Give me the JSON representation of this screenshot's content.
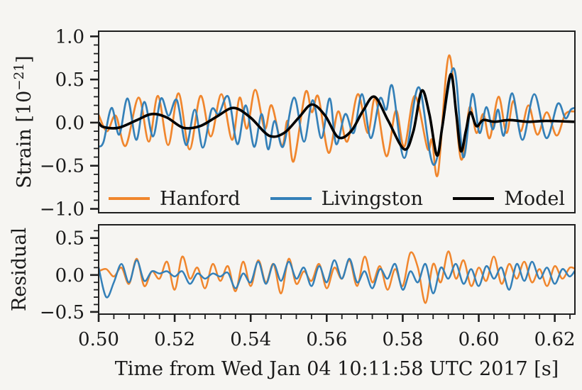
{
  "figure": {
    "background": "#f6f5f2",
    "axis_color": "#1f1f1f",
    "text_color": "#1a1a1a"
  },
  "labels": {
    "xlabel": "Time from Wed Jan 04 10:11:58 UTC 2017 [s]",
    "strain_prefix": "Strain [10",
    "strain_exp": "−21",
    "strain_suffix": "]",
    "residual": "Residual"
  },
  "legend": {
    "items": [
      {
        "label": "Hanford",
        "color": "#f0862d"
      },
      {
        "label": "Livingston",
        "color": "#3480b8"
      },
      {
        "label": "Model",
        "color": "#000000"
      }
    ]
  },
  "xaxis": {
    "range": [
      0.5,
      0.6253
    ],
    "major_ticks": [
      0.5,
      0.52,
      0.54,
      0.56,
      0.58,
      0.6,
      0.62
    ],
    "major_tick_labels": [
      "0.50",
      "0.52",
      "0.54",
      "0.56",
      "0.58",
      "0.60",
      "0.62"
    ],
    "minor_step": 0.004,
    "label": "Time from Wed Jan 04 10:11:58 UTC 2017 [s]"
  },
  "chart_data": [
    {
      "type": "line",
      "name": "strain",
      "ylabel": "Strain [10^-21]",
      "ylim": [
        -1.045,
        1.06
      ],
      "yticks": [
        1.0,
        0.5,
        0.0,
        -0.5,
        -1.0
      ],
      "ytick_labels": [
        "1.0",
        "0.5",
        "0.0",
        "−0.5",
        "−1.0"
      ],
      "y_minor_step": 0.1,
      "show_x_ticks": false,
      "show_x_labels": false,
      "legend_entries": [
        "Hanford",
        "Livingston",
        "Model"
      ],
      "series": [
        {
          "name": "Hanford",
          "color": "#f0862d",
          "width": 2.7,
          "points": [
            [
              0.5,
              0.09
            ],
            [
              0.5022,
              -0.1
            ],
            [
              0.5045,
              0.08
            ],
            [
              0.5071,
              -0.27
            ],
            [
              0.5105,
              0.29
            ],
            [
              0.5132,
              -0.22
            ],
            [
              0.5156,
              0.31
            ],
            [
              0.5183,
              -0.26
            ],
            [
              0.521,
              0.34
            ],
            [
              0.5239,
              -0.31
            ],
            [
              0.5268,
              0.31
            ],
            [
              0.5295,
              -0.16
            ],
            [
              0.5323,
              0.33
            ],
            [
              0.5351,
              -0.2
            ],
            [
              0.5371,
              0.29
            ],
            [
              0.539,
              -0.07
            ],
            [
              0.5412,
              0.38
            ],
            [
              0.5437,
              -0.07
            ],
            [
              0.5455,
              0.2
            ],
            [
              0.5482,
              -0.27
            ],
            [
              0.5497,
              0.02
            ],
            [
              0.5513,
              -0.45
            ],
            [
              0.5544,
              0.35
            ],
            [
              0.5561,
              0.12
            ],
            [
              0.5578,
              0.3
            ],
            [
              0.5605,
              -0.35
            ],
            [
              0.563,
              0.13
            ],
            [
              0.5654,
              -0.22
            ],
            [
              0.5682,
              0.33
            ],
            [
              0.5708,
              -0.12
            ],
            [
              0.5728,
              0.28
            ],
            [
              0.5757,
              -0.39
            ],
            [
              0.5782,
              0.14
            ],
            [
              0.5804,
              -0.28
            ],
            [
              0.5832,
              0.31
            ],
            [
              0.5865,
              -0.3
            ],
            [
              0.5877,
              -0.2
            ],
            [
              0.5893,
              -0.59
            ],
            [
              0.5922,
              0.78
            ],
            [
              0.5953,
              -0.42
            ],
            [
              0.5976,
              0.18
            ],
            [
              0.5994,
              -0.12
            ],
            [
              0.6012,
              0.1
            ],
            [
              0.6029,
              -0.18
            ],
            [
              0.6052,
              0.3
            ],
            [
              0.6073,
              -0.12
            ],
            [
              0.6091,
              0.25
            ],
            [
              0.611,
              -0.1
            ],
            [
              0.6131,
              0.2
            ],
            [
              0.6154,
              -0.14
            ],
            [
              0.6179,
              0.12
            ],
            [
              0.6205,
              -0.15
            ],
            [
              0.6228,
              0.1
            ],
            [
              0.6252,
              0.13
            ]
          ]
        },
        {
          "name": "Livingston",
          "color": "#3480b8",
          "width": 2.7,
          "points": [
            [
              0.5,
              -0.28
            ],
            [
              0.5013,
              -0.22
            ],
            [
              0.5034,
              0.17
            ],
            [
              0.5054,
              -0.14
            ],
            [
              0.5076,
              0.28
            ],
            [
              0.5099,
              -0.2
            ],
            [
              0.512,
              0.24
            ],
            [
              0.5143,
              -0.16
            ],
            [
              0.5164,
              0.28
            ],
            [
              0.5184,
              0.08
            ],
            [
              0.5206,
              0.26
            ],
            [
              0.523,
              -0.26
            ],
            [
              0.5253,
              0.15
            ],
            [
              0.5274,
              -0.29
            ],
            [
              0.5297,
              0.15
            ],
            [
              0.5316,
              0.1
            ],
            [
              0.5341,
              0.3
            ],
            [
              0.5365,
              -0.25
            ],
            [
              0.5387,
              0.2
            ],
            [
              0.5409,
              -0.28
            ],
            [
              0.5429,
              0.1
            ],
            [
              0.5446,
              -0.31
            ],
            [
              0.5463,
              0.02
            ],
            [
              0.5485,
              -0.28
            ],
            [
              0.5514,
              0.29
            ],
            [
              0.554,
              -0.22
            ],
            [
              0.5563,
              0.26
            ],
            [
              0.5586,
              -0.18
            ],
            [
              0.5608,
              0.28
            ],
            [
              0.5625,
              -0.25
            ],
            [
              0.5649,
              0.1
            ],
            [
              0.5671,
              -0.12
            ],
            [
              0.5693,
              0.33
            ],
            [
              0.5716,
              -0.18
            ],
            [
              0.574,
              0.28
            ],
            [
              0.5757,
              0.15
            ],
            [
              0.5773,
              0.42
            ],
            [
              0.5804,
              -0.41
            ],
            [
              0.5842,
              0.41
            ],
            [
              0.5883,
              -0.49
            ],
            [
              0.5933,
              0.63
            ],
            [
              0.5959,
              -0.4
            ],
            [
              0.5983,
              0.33
            ],
            [
              0.6002,
              -0.12
            ],
            [
              0.602,
              0.18
            ],
            [
              0.6037,
              -0.08
            ],
            [
              0.6051,
              0.15
            ],
            [
              0.6066,
              -0.15
            ],
            [
              0.6088,
              0.34
            ],
            [
              0.6115,
              -0.2
            ],
            [
              0.6146,
              0.33
            ],
            [
              0.6178,
              -0.18
            ],
            [
              0.6208,
              0.22
            ],
            [
              0.6228,
              0.05
            ],
            [
              0.6242,
              0.15
            ],
            [
              0.6252,
              0.17
            ]
          ]
        },
        {
          "name": "Model",
          "color": "#000000",
          "width": 3.6,
          "points": [
            [
              0.5,
              0.0
            ],
            [
              0.5012,
              -0.05
            ],
            [
              0.5052,
              -0.06
            ],
            [
              0.5101,
              0.03
            ],
            [
              0.514,
              0.1
            ],
            [
              0.5179,
              0.06
            ],
            [
              0.5223,
              -0.06
            ],
            [
              0.5267,
              -0.04
            ],
            [
              0.5311,
              0.07
            ],
            [
              0.5355,
              0.17
            ],
            [
              0.5399,
              0.06
            ],
            [
              0.5448,
              -0.15
            ],
            [
              0.5488,
              -0.12
            ],
            [
              0.5527,
              0.06
            ],
            [
              0.5561,
              0.21
            ],
            [
              0.5596,
              0.08
            ],
            [
              0.563,
              -0.17
            ],
            [
              0.5664,
              -0.1
            ],
            [
              0.5696,
              0.14
            ],
            [
              0.5726,
              0.3
            ],
            [
              0.5762,
              0.02
            ],
            [
              0.5804,
              -0.31
            ],
            [
              0.5828,
              -0.1
            ],
            [
              0.585,
              0.37
            ],
            [
              0.587,
              0.1
            ],
            [
              0.589,
              -0.38
            ],
            [
              0.5904,
              -0.05
            ],
            [
              0.5926,
              0.56
            ],
            [
              0.5941,
              0.1
            ],
            [
              0.5953,
              -0.33
            ],
            [
              0.5966,
              -0.1
            ],
            [
              0.5978,
              0.12
            ],
            [
              0.5994,
              -0.04
            ],
            [
              0.6012,
              0.03
            ],
            [
              0.6041,
              0.01
            ],
            [
              0.608,
              0.03
            ],
            [
              0.6129,
              0.01
            ],
            [
              0.6178,
              0.02
            ],
            [
              0.6252,
              0.01
            ]
          ]
        }
      ]
    },
    {
      "type": "line",
      "name": "residual",
      "ylabel": "Residual",
      "ylim": [
        -0.53,
        0.68
      ],
      "yticks": [
        0.5,
        0.0,
        -0.5
      ],
      "ytick_labels": [
        "0.5",
        "0.0",
        "−0.5"
      ],
      "y_minor_step": 0.1,
      "show_x_ticks": true,
      "show_x_labels": true,
      "series": [
        {
          "name": "Hanford",
          "color": "#f0862d",
          "width": 2.5,
          "t0": 0.5,
          "dt": 0.002,
          "values": [
            0.05,
            0.08,
            -0.02,
            0.1,
            -0.12,
            0.22,
            -0.15,
            0.05,
            -0.05,
            0.18,
            -0.2,
            0.25,
            -0.05,
            0.1,
            -0.18,
            0.15,
            -0.08,
            0.12,
            -0.22,
            0.18,
            -0.15,
            0.2,
            -0.1,
            0.15,
            -0.25,
            0.22,
            -0.12,
            0.05,
            -0.08,
            0.15,
            -0.18,
            0.1,
            -0.05,
            0.2,
            -0.15,
            0.25,
            -0.1,
            0.12,
            -0.2,
            0.08,
            -0.15,
            0.3,
            0.1,
            -0.38,
            0.15,
            -0.1,
            0.32,
            -0.05,
            0.2,
            -0.15,
            0.1,
            -0.08,
            0.25,
            -0.12,
            0.15,
            -0.05,
            0.18,
            -0.1,
            0.08,
            -0.15,
            0.12,
            -0.05,
            0.1,
            0.06
          ]
        },
        {
          "name": "Livingston",
          "color": "#3480b8",
          "width": 2.5,
          "t0": 0.5,
          "dt": 0.002,
          "values": [
            0.1,
            -0.3,
            -0.1,
            0.15,
            -0.1,
            0.2,
            -0.08,
            0.05,
            0.02,
            0.05,
            -0.02,
            0.05,
            -0.12,
            0.02,
            -0.05,
            0.02,
            -0.02,
            0.03,
            -0.18,
            0.02,
            -0.1,
            0.18,
            -0.12,
            0.15,
            -0.08,
            0.18,
            -0.05,
            0.1,
            -0.15,
            0.12,
            -0.1,
            0.2,
            -0.05,
            0.22,
            -0.1,
            0.05,
            -0.18,
            0.08,
            -0.05,
            0.15,
            -0.2,
            0.05,
            -0.1,
            0.15,
            -0.25,
            0.1,
            -0.05,
            0.15,
            -0.12,
            0.08,
            -0.15,
            0.12,
            -0.05,
            0.1,
            -0.2,
            0.15,
            -0.08,
            0.18,
            -0.05,
            0.1,
            -0.12,
            0.08,
            -0.02,
            0.12
          ]
        }
      ]
    }
  ]
}
